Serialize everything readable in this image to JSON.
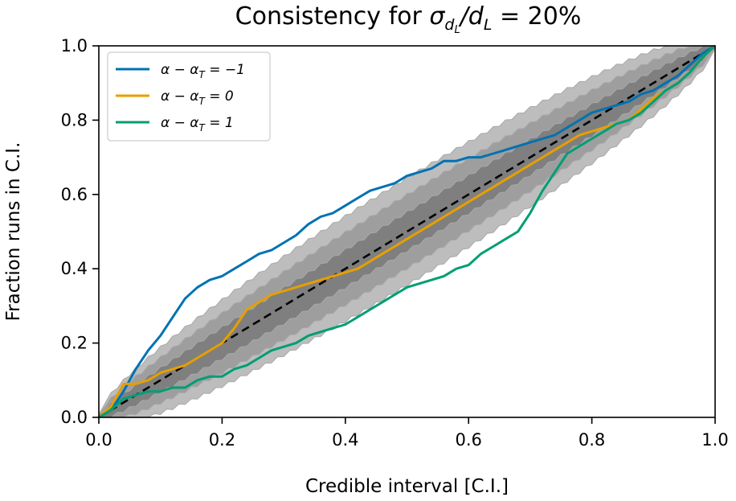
{
  "chart_data": {
    "type": "line",
    "title": "Consistency for σ_{d_L}/d_L = 20%",
    "title_parts": [
      "Consistency for ",
      "σ",
      "d",
      "L",
      "/d",
      "L",
      " = 20%"
    ],
    "xlabel": "Credible interval [C.I.]",
    "ylabel": "Fraction runs in C.I.",
    "xlim": [
      0.0,
      1.0
    ],
    "ylim": [
      0.0,
      1.0
    ],
    "xticks": [
      "0.0",
      "0.2",
      "0.4",
      "0.6",
      "0.8",
      "1.0"
    ],
    "yticks": [
      "0.0",
      "0.2",
      "0.4",
      "0.6",
      "0.8",
      "1.0"
    ],
    "grid": false,
    "legend_position": "top-left",
    "bands": [
      {
        "label": "3-sigma",
        "color": "#bdbdbd",
        "halfwidth_max": 0.14
      },
      {
        "label": "2-sigma",
        "color": "#9e9e9e",
        "halfwidth_max": 0.095
      },
      {
        "label": "1-sigma",
        "color": "#7f7f7f",
        "halfwidth_max": 0.048
      }
    ],
    "reference_line": {
      "style": "dashed",
      "color": "#000000",
      "x": [
        0,
        1
      ],
      "y": [
        0,
        1
      ]
    },
    "series": [
      {
        "name": "α − α_T = −1",
        "legend_parts": [
          "α − α",
          "T",
          " = −1"
        ],
        "color": "#0072b2",
        "x": [
          0.0,
          0.02,
          0.04,
          0.06,
          0.08,
          0.1,
          0.12,
          0.14,
          0.16,
          0.18,
          0.2,
          0.22,
          0.24,
          0.26,
          0.28,
          0.3,
          0.32,
          0.34,
          0.36,
          0.38,
          0.4,
          0.42,
          0.44,
          0.46,
          0.48,
          0.5,
          0.52,
          0.54,
          0.56,
          0.58,
          0.6,
          0.62,
          0.64,
          0.66,
          0.68,
          0.7,
          0.72,
          0.74,
          0.76,
          0.78,
          0.8,
          0.82,
          0.84,
          0.86,
          0.88,
          0.9,
          0.92,
          0.94,
          0.96,
          0.98,
          1.0
        ],
        "y": [
          0.0,
          0.02,
          0.07,
          0.13,
          0.18,
          0.22,
          0.27,
          0.32,
          0.35,
          0.37,
          0.38,
          0.4,
          0.42,
          0.44,
          0.45,
          0.47,
          0.49,
          0.52,
          0.54,
          0.55,
          0.57,
          0.59,
          0.61,
          0.62,
          0.63,
          0.65,
          0.66,
          0.67,
          0.69,
          0.69,
          0.7,
          0.7,
          0.71,
          0.72,
          0.73,
          0.74,
          0.75,
          0.76,
          0.78,
          0.8,
          0.82,
          0.83,
          0.84,
          0.85,
          0.87,
          0.88,
          0.9,
          0.92,
          0.95,
          0.98,
          1.0
        ]
      },
      {
        "name": "α − α_T = 0",
        "legend_parts": [
          "α − α",
          "T",
          " = 0"
        ],
        "color": "#e69f00",
        "x": [
          0.0,
          0.02,
          0.04,
          0.06,
          0.08,
          0.1,
          0.12,
          0.14,
          0.16,
          0.18,
          0.2,
          0.22,
          0.24,
          0.26,
          0.28,
          0.3,
          0.32,
          0.34,
          0.36,
          0.38,
          0.4,
          0.42,
          0.44,
          0.46,
          0.48,
          0.5,
          0.52,
          0.54,
          0.56,
          0.58,
          0.6,
          0.62,
          0.64,
          0.66,
          0.68,
          0.7,
          0.72,
          0.74,
          0.76,
          0.78,
          0.8,
          0.82,
          0.84,
          0.86,
          0.88,
          0.9,
          0.92,
          0.94,
          0.96,
          0.98,
          1.0
        ],
        "y": [
          0.0,
          0.03,
          0.09,
          0.09,
          0.1,
          0.12,
          0.13,
          0.14,
          0.16,
          0.18,
          0.2,
          0.24,
          0.29,
          0.31,
          0.33,
          0.34,
          0.35,
          0.36,
          0.37,
          0.38,
          0.39,
          0.4,
          0.42,
          0.44,
          0.46,
          0.48,
          0.5,
          0.52,
          0.54,
          0.56,
          0.58,
          0.6,
          0.62,
          0.64,
          0.66,
          0.68,
          0.7,
          0.72,
          0.74,
          0.76,
          0.77,
          0.78,
          0.79,
          0.8,
          0.83,
          0.86,
          0.88,
          0.9,
          0.93,
          0.97,
          1.0
        ]
      },
      {
        "name": "α − α_T = 1",
        "legend_parts": [
          "α − α",
          "T",
          " = 1"
        ],
        "color": "#009e73",
        "x": [
          0.0,
          0.02,
          0.04,
          0.06,
          0.08,
          0.1,
          0.12,
          0.14,
          0.16,
          0.18,
          0.2,
          0.22,
          0.24,
          0.26,
          0.28,
          0.3,
          0.32,
          0.34,
          0.36,
          0.38,
          0.4,
          0.42,
          0.44,
          0.46,
          0.48,
          0.5,
          0.52,
          0.54,
          0.56,
          0.58,
          0.6,
          0.62,
          0.64,
          0.66,
          0.68,
          0.7,
          0.72,
          0.74,
          0.76,
          0.78,
          0.8,
          0.82,
          0.84,
          0.86,
          0.88,
          0.9,
          0.92,
          0.94,
          0.96,
          0.98,
          1.0
        ],
        "y": [
          0.0,
          0.02,
          0.05,
          0.06,
          0.07,
          0.07,
          0.08,
          0.08,
          0.1,
          0.11,
          0.11,
          0.13,
          0.14,
          0.16,
          0.18,
          0.19,
          0.2,
          0.22,
          0.23,
          0.24,
          0.25,
          0.27,
          0.29,
          0.31,
          0.33,
          0.35,
          0.36,
          0.37,
          0.38,
          0.4,
          0.41,
          0.44,
          0.46,
          0.48,
          0.5,
          0.55,
          0.61,
          0.66,
          0.71,
          0.73,
          0.75,
          0.77,
          0.79,
          0.8,
          0.82,
          0.85,
          0.88,
          0.9,
          0.93,
          0.97,
          1.0
        ]
      }
    ]
  }
}
